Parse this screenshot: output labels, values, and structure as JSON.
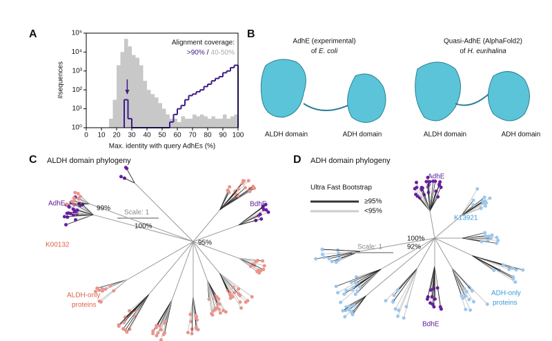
{
  "chart_data": {
    "type": "histogram",
    "xlabel": "Max. identity with query AdhEs (%)",
    "ylabel": "#sequences",
    "xlim": [
      0,
      100
    ],
    "xticks": [
      0,
      10,
      20,
      30,
      40,
      50,
      60,
      70,
      80,
      90,
      100
    ],
    "ylim": [
      1,
      100000
    ],
    "log_y": true,
    "yticks": [
      {
        "value": 1,
        "label": "10⁰"
      },
      {
        "value": 10,
        "label": "10¹"
      },
      {
        "value": 100,
        "label": "10²"
      },
      {
        "value": 1000,
        "label": "10³"
      },
      {
        "value": 10000,
        "label": "10⁴"
      },
      {
        "value": 100000,
        "label": "10⁵"
      }
    ],
    "legend_title": "Alignment coverage:",
    "legend_separator": "/",
    "legend": "upper right",
    "annotation_x": 27,
    "series": [
      {
        "name": "40-50%",
        "color": "#c8c8c8",
        "style": "bar",
        "bins": [
          15,
          17.5,
          20,
          22.5,
          25,
          27.5,
          30,
          32.5,
          35,
          37.5,
          40,
          42.5,
          45,
          47.5,
          50,
          52.5,
          55,
          57.5,
          60,
          62.5,
          65,
          67.5,
          70,
          72.5,
          75,
          77.5,
          80,
          82.5,
          85,
          87.5,
          90,
          92.5,
          95,
          97.5,
          100
        ],
        "values": [
          3,
          30,
          2000,
          10000,
          50000,
          20000,
          7000,
          5000,
          2000,
          300,
          100,
          60,
          40,
          20,
          10,
          5,
          3,
          3,
          2,
          4,
          3,
          3,
          5,
          4,
          5,
          4,
          3,
          4,
          3,
          3,
          5,
          3,
          4,
          5
        ]
      },
      {
        "name": ">90%",
        "color": "#3b1a8a",
        "style": "step",
        "bins": [
          25,
          27.5,
          30,
          32.5,
          35,
          37.5,
          40,
          42.5,
          45,
          47.5,
          50,
          52.5,
          55,
          57.5,
          60,
          62.5,
          65,
          67.5,
          70,
          72.5,
          75,
          77.5,
          80,
          82.5,
          85,
          87.5,
          90,
          92.5,
          95,
          97.5,
          100
        ],
        "values": [
          30,
          3,
          1,
          1,
          1,
          1,
          1,
          1,
          1,
          1,
          1,
          1,
          2,
          5,
          10,
          15,
          30,
          50,
          60,
          80,
          100,
          150,
          200,
          300,
          400,
          500,
          800,
          1000,
          1500,
          2000
        ]
      }
    ]
  },
  "panels": {
    "labels": [
      "A",
      "B",
      "C",
      "D"
    ],
    "b": {
      "left_title": "AdhE (experimental)",
      "left_sub": "of ",
      "left_species": "E. coli",
      "right_title": "Quasi-AdhE (AlphaFold2)",
      "right_sub": "of ",
      "right_species": "H. eurihalina",
      "aldh": "ALDH domain",
      "adh": "ADH domain"
    },
    "c": {
      "title": "ALDH domain phylogeny",
      "adhe": "AdhE",
      "b99": "99%",
      "scale": "Scale: 1",
      "b100": "100%",
      "bdhe": "BdhE",
      "b95": "95%",
      "k": "K00132",
      "only1": "ALDH-only",
      "only2": "proteins"
    },
    "d": {
      "title": "ADH domain phylogeny",
      "legend_title": "Ultra Fast Bootstrap",
      "hi": "≥95%",
      "lo": "<95%",
      "adhe": "AdhE",
      "k": "K13921",
      "b100": "100%",
      "b92": "92%",
      "scale": "Scale: 1",
      "only1": "ADH-only",
      "only2": "proteins",
      "bdhe": "BdhE"
    }
  }
}
